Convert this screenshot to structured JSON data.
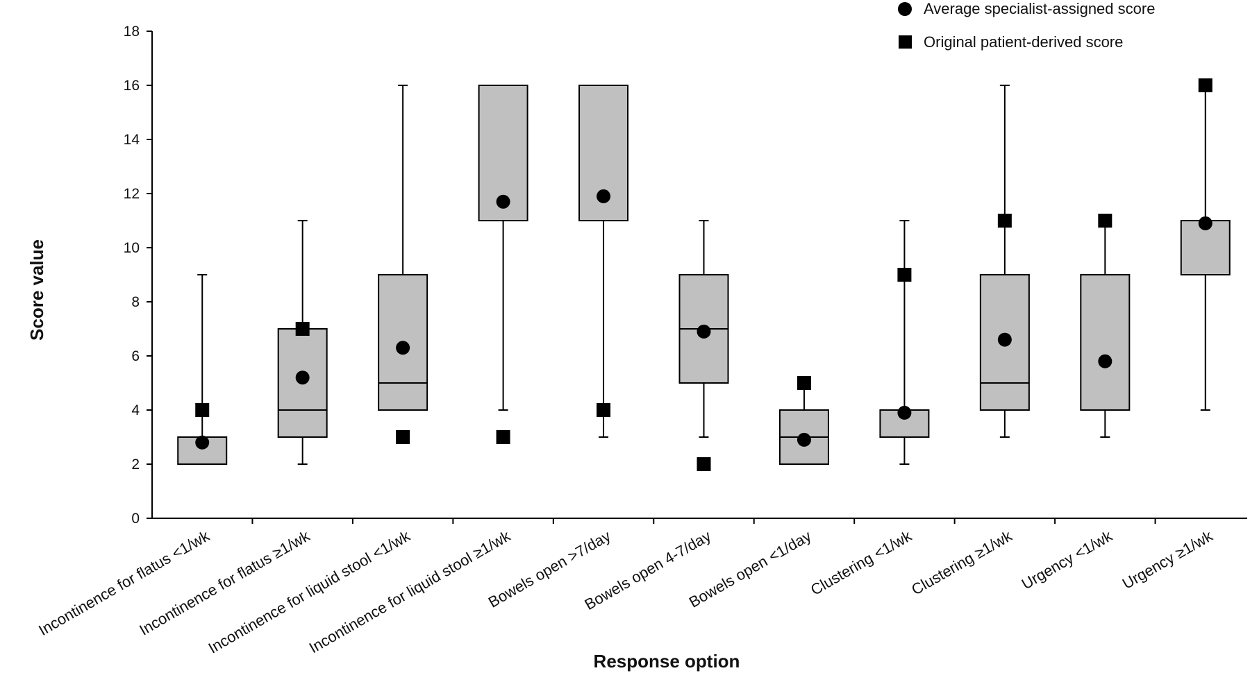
{
  "chart_data": {
    "type": "box",
    "xlabel": "Response option",
    "ylabel": "Score value",
    "ylim": [
      0,
      18
    ],
    "yticks": [
      0,
      2,
      4,
      6,
      8,
      10,
      12,
      14,
      16,
      18
    ],
    "grid": false,
    "legend_position": "top-right",
    "legend": [
      {
        "marker": "circle",
        "label": "Average specialist-assigned score"
      },
      {
        "marker": "square",
        "label": "Original patient-derived score"
      }
    ],
    "categories": [
      "Incontinence for flatus <1/wk",
      "Incontinence for flatus ≥1/wk",
      "Incontinence for liquid stool <1/wk",
      "Incontinence for liquid stool ≥1/wk",
      "Bowels open >7/day",
      "Bowels open 4-7/day",
      "Bowels open <1/day",
      "Clustering <1/wk",
      "Clustering ≥1/wk",
      "Urgency <1/wk",
      "Urgency ≥1/wk"
    ],
    "boxes": [
      {
        "whisker_low": 2,
        "q1": 2,
        "median": 2,
        "q3": 3,
        "whisker_high": 9
      },
      {
        "whisker_low": 2,
        "q1": 3,
        "median": 4,
        "q3": 7,
        "whisker_high": 11
      },
      {
        "whisker_low": 4,
        "q1": 4,
        "median": 5,
        "q3": 9,
        "whisker_high": 16
      },
      {
        "whisker_low": 4,
        "q1": 11,
        "median": 16,
        "q3": 16,
        "whisker_high": 16
      },
      {
        "whisker_low": 3,
        "q1": 11,
        "median": 16,
        "q3": 16,
        "whisker_high": 16
      },
      {
        "whisker_low": 3,
        "q1": 5,
        "median": 7,
        "q3": 9,
        "whisker_high": 11
      },
      {
        "whisker_low": 2,
        "q1": 2,
        "median": 3,
        "q3": 4,
        "whisker_high": 5
      },
      {
        "whisker_low": 2,
        "q1": 3,
        "median": 3,
        "q3": 4,
        "whisker_high": 11
      },
      {
        "whisker_low": 3,
        "q1": 4,
        "median": 5,
        "q3": 9,
        "whisker_high": 16
      },
      {
        "whisker_low": 3,
        "q1": 4,
        "median": 4,
        "q3": 9,
        "whisker_high": 11
      },
      {
        "whisker_low": 4,
        "q1": 9,
        "median": 11,
        "q3": 11,
        "whisker_high": 16
      }
    ],
    "series": [
      {
        "name": "Average specialist-assigned score",
        "marker": "circle",
        "values": [
          2.8,
          5.2,
          6.3,
          11.7,
          11.9,
          6.9,
          2.9,
          3.9,
          6.6,
          5.8,
          10.9
        ]
      },
      {
        "name": "Original patient-derived score",
        "marker": "square",
        "values": [
          4,
          7,
          3,
          3,
          4,
          2,
          5,
          9,
          11,
          11,
          16
        ]
      }
    ],
    "colors": {
      "box_fill": "#c0c0c0",
      "stroke": "#000000",
      "marker": "#000000"
    }
  }
}
